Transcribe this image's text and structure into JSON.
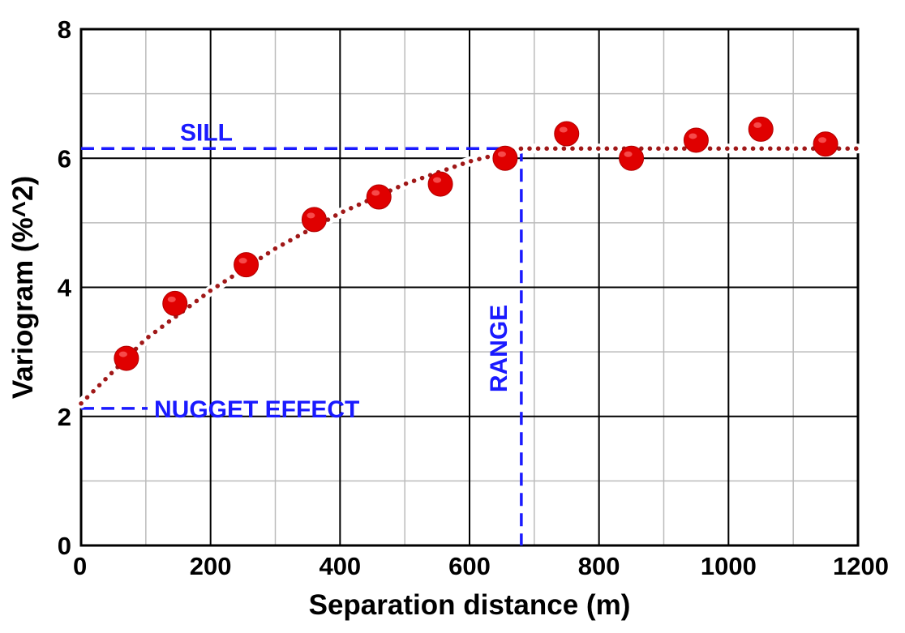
{
  "chart_data": {
    "type": "scatter",
    "title": "",
    "xlabel": "Separation distance (m)",
    "ylabel": "Variogram (%^2)",
    "xlim": [
      0,
      1200
    ],
    "ylim": [
      0,
      8
    ],
    "x_ticks": [
      0,
      200,
      400,
      600,
      800,
      1000,
      1200
    ],
    "y_ticks": [
      0,
      2,
      4,
      6,
      8
    ],
    "grid": true,
    "colors": {
      "points": "#e00000",
      "model": "#a01818",
      "annotation": "#1a1aff",
      "grid_major": "#000000",
      "grid_minor": "#bbbbbb"
    },
    "series": [
      {
        "kind": "points",
        "x": [
          70,
          145,
          255,
          360,
          460,
          555,
          655,
          750,
          850,
          950,
          1050,
          1150
        ],
        "y": [
          2.9,
          3.75,
          4.35,
          5.05,
          5.4,
          5.6,
          6.0,
          6.38,
          6.0,
          6.28,
          6.45,
          6.22
        ]
      },
      {
        "kind": "model",
        "style": "dotted",
        "x": [
          0,
          100,
          200,
          300,
          400,
          500,
          600,
          680,
          800,
          1000,
          1200
        ],
        "y": [
          2.2,
          3.2,
          3.95,
          4.6,
          5.15,
          5.6,
          5.95,
          6.15,
          6.15,
          6.15,
          6.15
        ]
      }
    ],
    "annotations": {
      "sill": {
        "label": "SILL",
        "y": 6.15,
        "x_end": 680
      },
      "range": {
        "label": "RANGE",
        "x": 680
      },
      "nugget": {
        "label": "NUGGET EFFECT",
        "y": 2.2
      }
    }
  }
}
